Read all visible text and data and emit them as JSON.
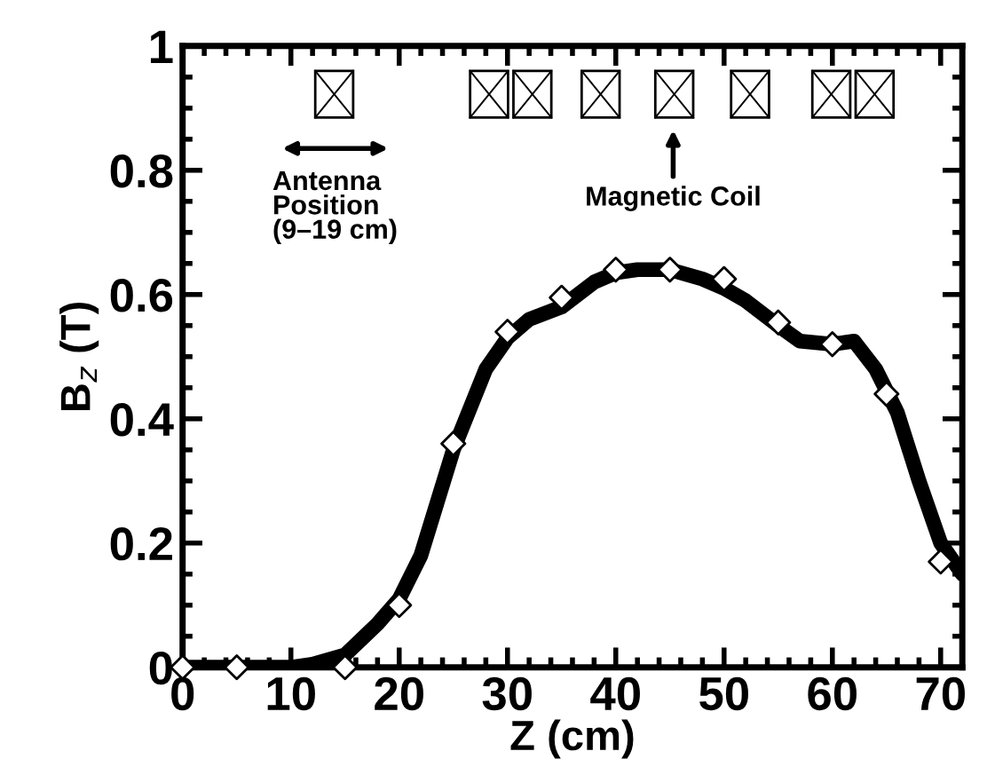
{
  "chart_data": {
    "type": "line",
    "xlabel": "Z (cm)",
    "ylabel": "B$_{z}$ (T)",
    "annotations": [
      "Antenna Position (9–19 cm)",
      "Magnetic Coil"
    ],
    "series": [
      {
        "color": "#000000",
        "marker": "none",
        "x": [
          0,
          5,
          10,
          12,
          15,
          18,
          20,
          22,
          25,
          28,
          30,
          32,
          35,
          38,
          40,
          42,
          45,
          48,
          50,
          52,
          55,
          57,
          60,
          62,
          64,
          66,
          68,
          70,
          72
        ],
        "values": [
          0,
          0,
          0,
          0.005,
          0.02,
          0.07,
          0.11,
          0.18,
          0.35,
          0.48,
          0.53,
          0.56,
          0.58,
          0.62,
          0.635,
          0.64,
          0.64,
          0.625,
          0.61,
          0.59,
          0.55,
          0.525,
          0.52,
          0.525,
          0.48,
          0.41,
          0.3,
          0.2,
          0.15
        ]
      },
      {
        "type": "scatter",
        "color": "#000000",
        "marker": "diamond",
        "x": [
          0,
          5,
          15,
          20,
          25,
          30,
          35,
          40,
          45,
          50,
          55,
          60,
          65,
          70
        ],
        "values": [
          0,
          0,
          0,
          0.1,
          0.36,
          0.54,
          0.595,
          0.64,
          0.64,
          0.625,
          0.555,
          0.52,
          0.44,
          0.17
        ]
      }
    ],
    "xlim": [
      0,
      72
    ],
    "xticks": [
      0,
      10,
      20,
      30,
      40,
      50,
      60,
      70
    ],
    "ylim": [
      0,
      1
    ],
    "yticks": [
      0,
      0.2,
      0.4,
      0.6,
      0.8,
      1
    ],
    "grid": false,
    "legend": false
  }
}
